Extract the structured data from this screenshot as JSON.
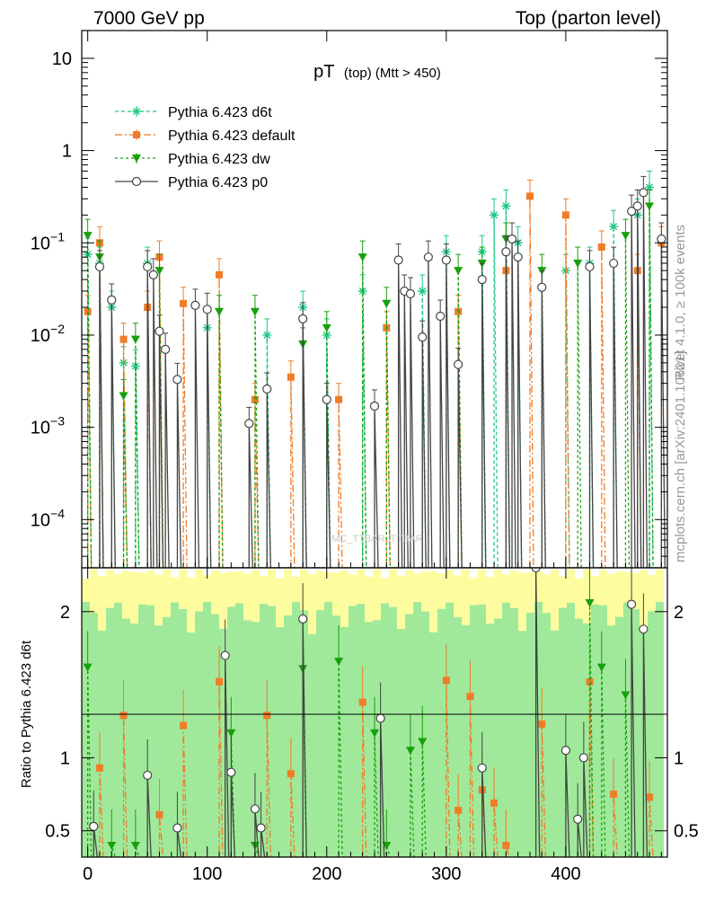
{
  "header": {
    "left_title": "7000 GeV pp",
    "right_title": "Top (parton level)"
  },
  "side_labels": {
    "rivet": "Rivet 4.1.0, ≥ 100k events",
    "mcplots": "mcplots.cern.ch [arXiv:2401.10621]"
  },
  "watermark": "MC_TTBAR_TTBAR",
  "ratio_ylabel": "Ratio to Pythia 6.423 d6t",
  "legend": [
    {
      "label": "Pythia 6.423 d6t",
      "color": "#1ec884",
      "marker": "star"
    },
    {
      "label": "Pythia 6.423 default",
      "color": "#f07c28",
      "marker": "square"
    },
    {
      "label": "Pythia 6.423 dw",
      "color": "#16a00a",
      "marker": "triangle"
    },
    {
      "label": "Pythia 6.423 p0",
      "color": "#444444",
      "marker": "circle"
    }
  ],
  "chart_data": {
    "type": "line",
    "title": "pT (top) (Mtt > 450)",
    "title_main": "pT",
    "title_sub": "(top) (Mtt > 450)",
    "xlabel": "",
    "ylabel": "",
    "xlim": [
      -5,
      485
    ],
    "ylim": [
      3e-05,
      20
    ],
    "y_scale": "log",
    "x_ticks": [
      "0",
      "100",
      "200",
      "300",
      "400"
    ],
    "x_tick_values": [
      0,
      100,
      200,
      300,
      400
    ],
    "y_ticks": [
      {
        "value": 0.0001,
        "base": "10",
        "exp": "−4"
      },
      {
        "value": 0.001,
        "base": "10",
        "exp": "−3"
      },
      {
        "value": 0.01,
        "base": "10",
        "exp": "−2"
      },
      {
        "value": 0.1,
        "base": "10",
        "exp": "−1"
      },
      {
        "value": 1,
        "base": "1",
        "exp": ""
      },
      {
        "value": 10,
        "base": "10",
        "exp": ""
      }
    ],
    "ratio_ylim": [
      0.32,
      2.3
    ],
    "ratio_ticks": [
      "0.5",
      "1",
      "2"
    ],
    "ratio_tick_values": [
      0.5,
      1,
      2
    ],
    "bin_width": 10,
    "series": [
      {
        "name": "Pythia 6.423 d6t",
        "x": [
          0,
          10,
          20,
          30,
          40,
          50,
          100,
          150,
          180,
          200,
          230,
          280,
          300,
          330,
          340,
          350,
          360,
          400,
          420,
          440,
          460,
          470
        ],
        "values": [
          0.075,
          0.06,
          0.02,
          0.005,
          0.0046,
          0.06,
          0.012,
          0.01,
          0.02,
          0.01,
          0.03,
          0.03,
          0.08,
          0.08,
          0.2,
          0.25,
          0.1,
          0.05,
          0.06,
          0.15,
          0.2,
          0.4
        ]
      },
      {
        "name": "Pythia 6.423 default",
        "x": [
          0,
          10,
          30,
          50,
          60,
          80,
          110,
          140,
          170,
          210,
          250,
          310,
          350,
          370,
          400,
          430,
          460,
          480
        ],
        "values": [
          0.018,
          0.1,
          0.009,
          0.02,
          0.07,
          0.022,
          0.045,
          0.002,
          0.0035,
          0.002,
          0.012,
          0.018,
          0.05,
          0.32,
          0.2,
          0.09,
          0.05,
          0.1
        ]
      },
      {
        "name": "Pythia 6.423 dw",
        "x": [
          0,
          10,
          30,
          40,
          60,
          110,
          140,
          180,
          200,
          230,
          250,
          310,
          330,
          350,
          380,
          410,
          450,
          470
        ],
        "values": [
          0.12,
          0.07,
          0.0022,
          0.009,
          0.05,
          0.018,
          0.018,
          0.008,
          0.012,
          0.07,
          0.022,
          0.05,
          0.06,
          0.11,
          0.05,
          0.06,
          0.12,
          0.25
        ]
      },
      {
        "name": "Pythia 6.423 p0",
        "x": [
          10,
          20,
          50,
          55,
          60,
          65,
          75,
          90,
          100,
          135,
          150,
          180,
          200,
          240,
          260,
          265,
          270,
          280,
          285,
          295,
          300,
          310,
          330,
          350,
          355,
          360,
          380,
          420,
          440,
          455,
          460,
          465,
          480
        ],
        "values": [
          0.055,
          0.024,
          0.055,
          0.045,
          0.011,
          0.007,
          0.0033,
          0.021,
          0.019,
          0.0011,
          0.0026,
          0.015,
          0.002,
          0.0017,
          0.065,
          0.03,
          0.028,
          0.0095,
          0.07,
          0.016,
          0.065,
          0.0048,
          0.04,
          0.08,
          0.11,
          0.07,
          0.033,
          0.055,
          0.06,
          0.22,
          0.25,
          0.35,
          0.11
        ]
      }
    ],
    "ratio_series": [
      {
        "name": "Pythia 6.423 default",
        "x": [
          10,
          30,
          60,
          80,
          110,
          150,
          170,
          230,
          300,
          310,
          320,
          330,
          340,
          350,
          380,
          420,
          440,
          470
        ],
        "values": [
          0.93,
          1.29,
          0.61,
          1.22,
          1.52,
          1.29,
          0.89,
          1.38,
          1.53,
          0.64,
          1.42,
          0.78,
          0.69,
          0.4,
          1.23,
          1.52,
          0.75,
          0.73
        ]
      },
      {
        "name": "Pythia 6.423 dw",
        "x": [
          0,
          20,
          40,
          120,
          140,
          180,
          210,
          240,
          250,
          270,
          280,
          420,
          430,
          450
        ],
        "values": [
          1.62,
          0.4,
          0.4,
          1.17,
          0.4,
          1.61,
          1.66,
          1.17,
          0.4,
          1.05,
          1.11,
          2.06,
          1.62,
          1.43
        ]
      },
      {
        "name": "Pythia 6.423 p0",
        "x": [
          5,
          50,
          75,
          115,
          120,
          140,
          145,
          180,
          245,
          330,
          375,
          400,
          410,
          415,
          455,
          465
        ],
        "values": [
          0.53,
          0.88,
          0.52,
          1.7,
          0.9,
          0.65,
          0.52,
          1.95,
          1.27,
          0.93,
          2.3,
          1.05,
          0.58,
          1.0,
          2.05,
          1.88
        ]
      }
    ]
  }
}
